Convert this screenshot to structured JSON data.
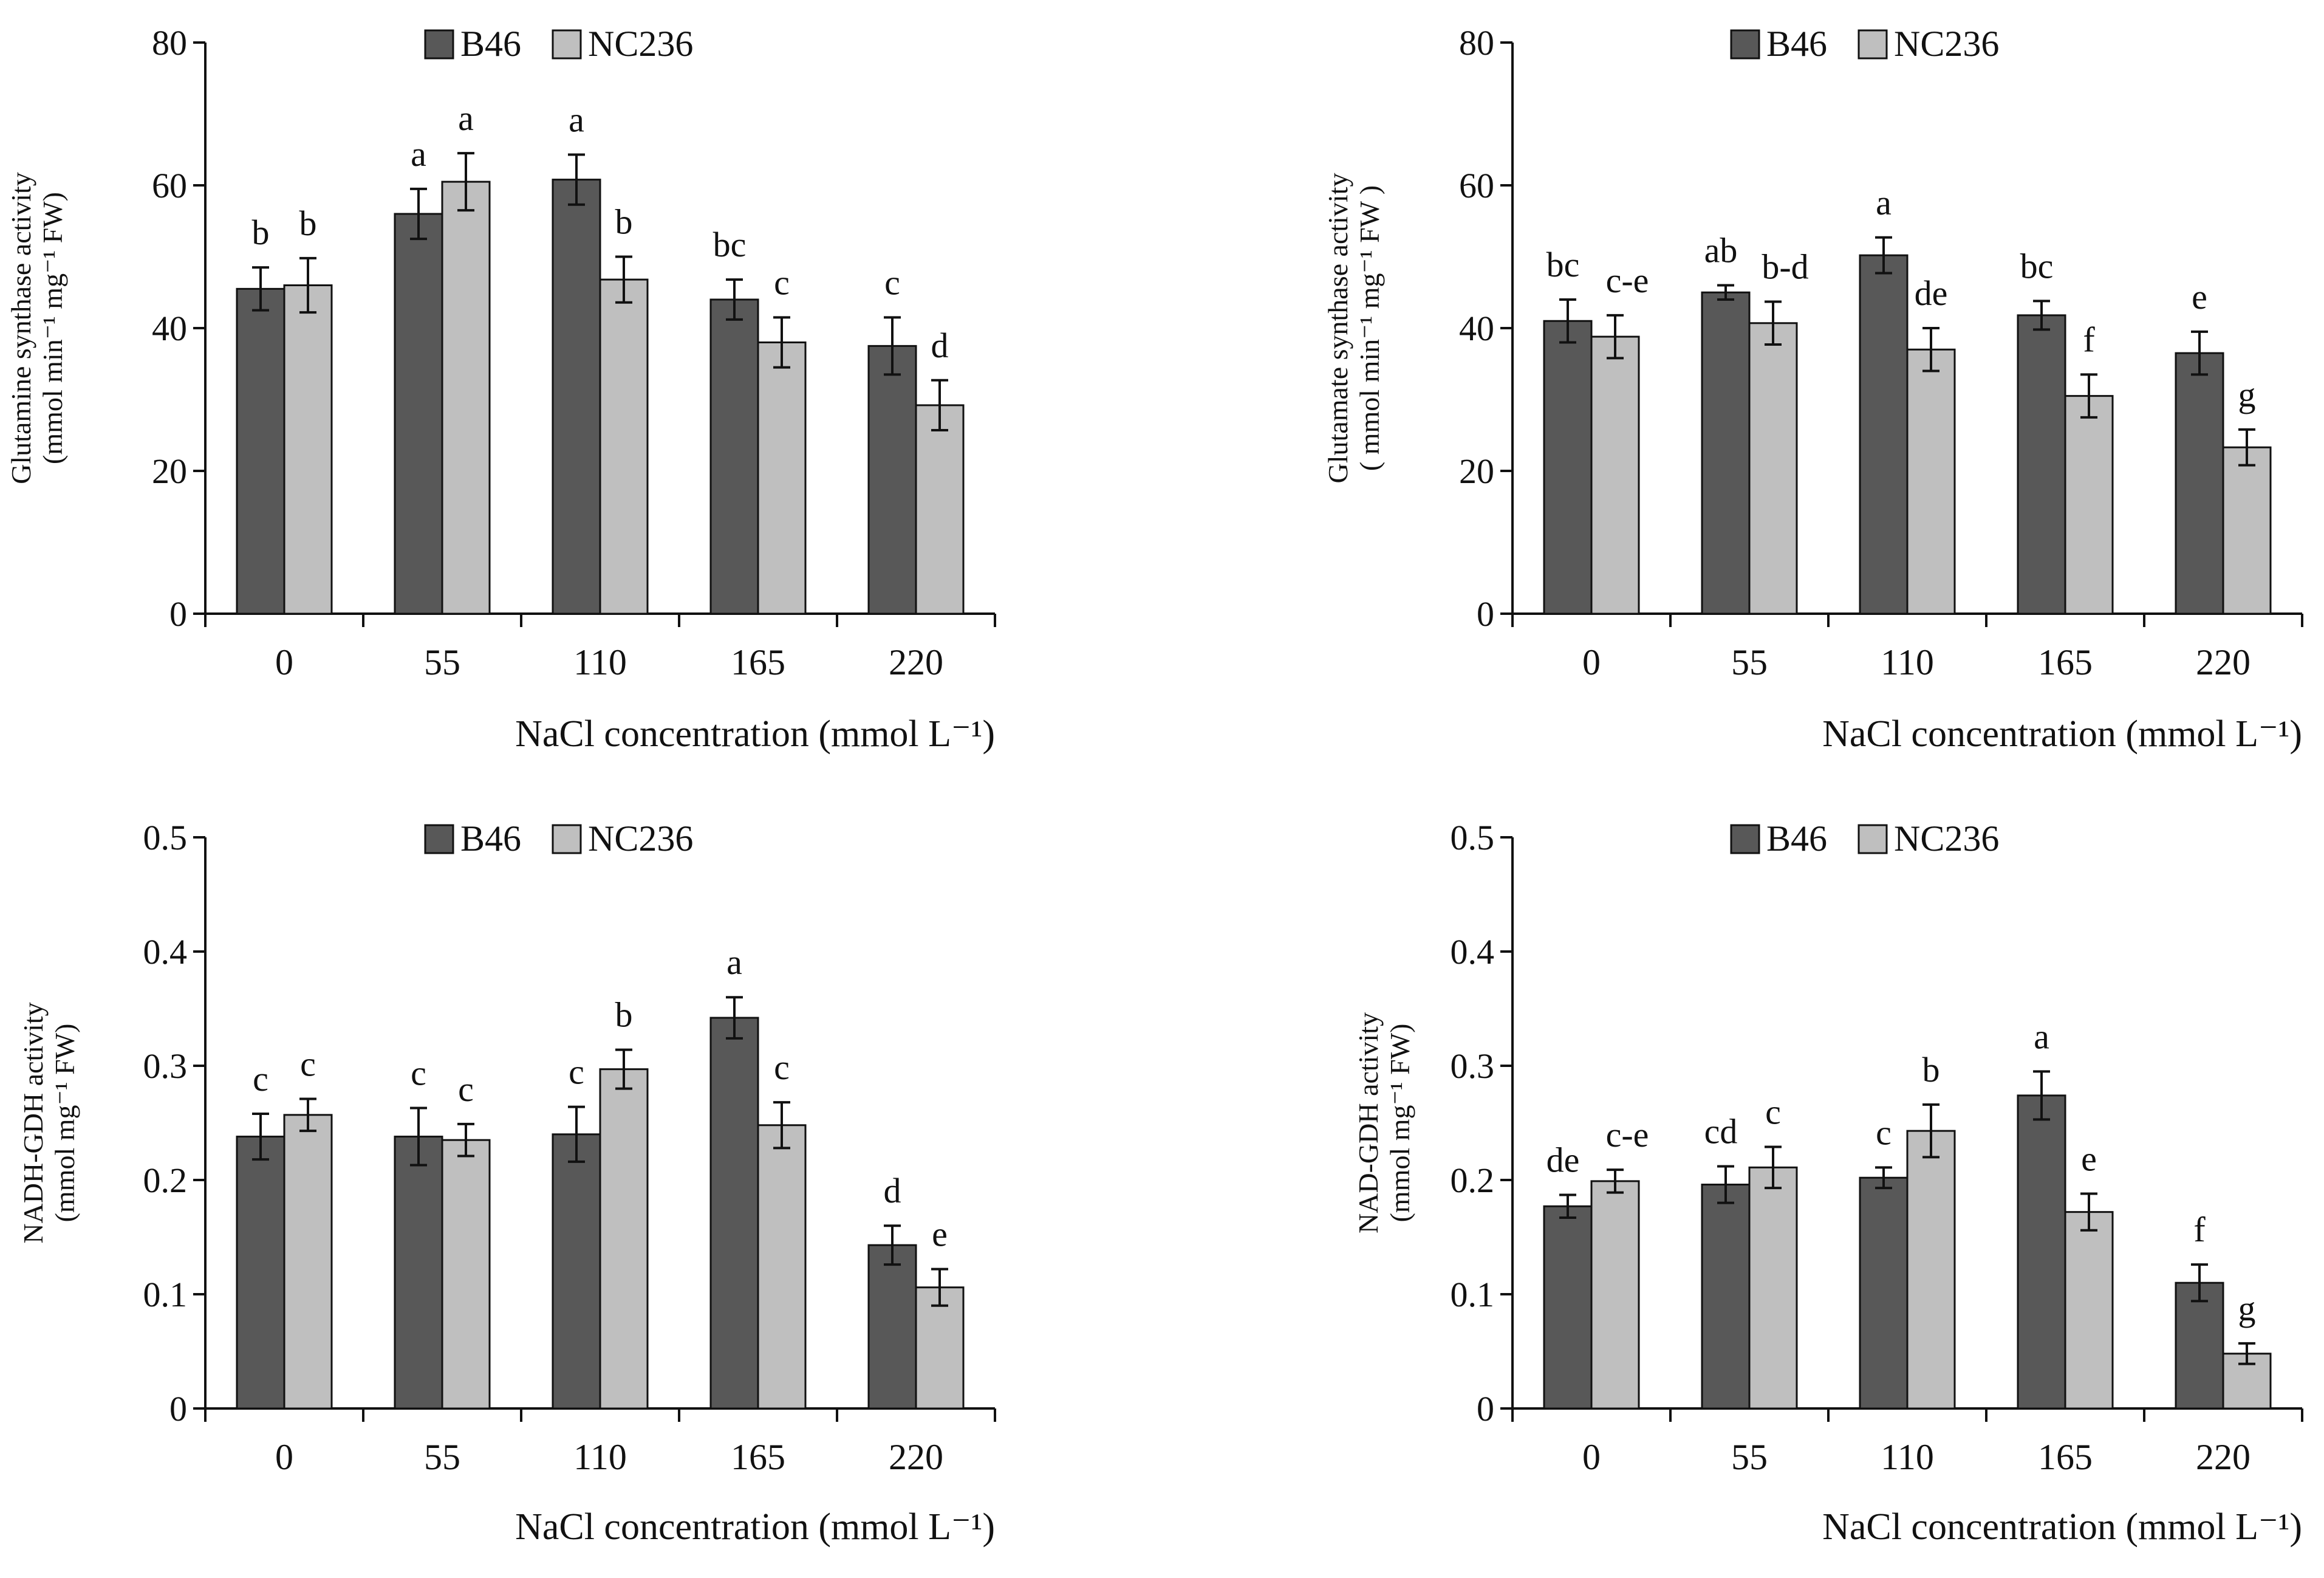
{
  "colors": {
    "b46": "#585858",
    "nc236": "#bfbfbf",
    "axis": "#111111"
  },
  "chart_data": [
    {
      "id": "gs",
      "type": "bar",
      "title": "",
      "ylabel_lines": [
        "Glutamine synthase activity",
        "(mmol min⁻¹ mg⁻¹ FW)"
      ],
      "xlabel": "NaCl concentration (mmol L⁻¹)",
      "categories": [
        "0",
        "55",
        "110",
        "165",
        "220"
      ],
      "ylim": [
        0,
        80
      ],
      "yticks": [
        0,
        20,
        40,
        60,
        80
      ],
      "ytick_labels": [
        "0",
        "20",
        "40",
        "60",
        "80"
      ],
      "legend_position": "top-center",
      "series": [
        {
          "name": "B46",
          "values": [
            45.5,
            56,
            60.8,
            44,
            37.5
          ],
          "errors": [
            3,
            3.5,
            3.5,
            2.8,
            4
          ],
          "letters": [
            "b",
            "a",
            "a",
            "bc",
            "c"
          ]
        },
        {
          "name": "NC236",
          "values": [
            46,
            60.5,
            46.8,
            38,
            29.2
          ],
          "errors": [
            3.8,
            4,
            3.2,
            3.5,
            3.5
          ],
          "letters": [
            "b",
            "a",
            "b",
            "c",
            "d"
          ]
        }
      ]
    },
    {
      "id": "gogat",
      "type": "bar",
      "title": "",
      "ylabel_lines": [
        "Glutamate synthase activity",
        "( mmol min⁻¹ mg⁻¹ FW )"
      ],
      "xlabel": "NaCl concentration (mmol L⁻¹)",
      "categories": [
        "0",
        "55",
        "110",
        "165",
        "220"
      ],
      "ylim": [
        0,
        80
      ],
      "yticks": [
        0,
        20,
        40,
        60,
        80
      ],
      "ytick_labels": [
        "0",
        "20",
        "40",
        "60",
        "80"
      ],
      "legend_position": "top-center",
      "series": [
        {
          "name": "B46",
          "values": [
            41,
            45,
            50.2,
            41.8,
            36.5
          ],
          "errors": [
            3,
            1,
            2.5,
            2,
            3
          ],
          "letters": [
            "bc",
            "ab",
            "a",
            "bc",
            "e"
          ]
        },
        {
          "name": "NC236",
          "values": [
            38.8,
            40.7,
            37,
            30.5,
            23.3
          ],
          "errors": [
            3,
            3,
            3,
            3,
            2.5
          ],
          "letters": [
            "c-e",
            "b-d",
            "de",
            "f",
            "g"
          ]
        }
      ]
    },
    {
      "id": "nadh-gdh",
      "type": "bar",
      "title": "",
      "ylabel_lines": [
        "NADH-GDH activity",
        "(mmol mg⁻¹ FW)"
      ],
      "xlabel": "NaCl concentration (mmol L⁻¹)",
      "categories": [
        "0",
        "55",
        "110",
        "165",
        "220"
      ],
      "ylim": [
        0,
        0.5
      ],
      "yticks": [
        0,
        0.1,
        0.2,
        0.3,
        0.4,
        0.5
      ],
      "ytick_labels": [
        "0",
        "0.1",
        "0.2",
        "0.3",
        "0.4",
        "0.5"
      ],
      "legend_position": "top-center",
      "series": [
        {
          "name": "B46",
          "values": [
            0.238,
            0.238,
            0.24,
            0.342,
            0.143
          ],
          "errors": [
            0.02,
            0.025,
            0.024,
            0.018,
            0.017
          ],
          "letters": [
            "c",
            "c",
            "c",
            "a",
            "d"
          ]
        },
        {
          "name": "NC236",
          "values": [
            0.257,
            0.235,
            0.297,
            0.248,
            0.106
          ],
          "errors": [
            0.014,
            0.014,
            0.017,
            0.02,
            0.016
          ],
          "letters": [
            "c",
            "c",
            "b",
            "c",
            "e"
          ]
        }
      ]
    },
    {
      "id": "nad-gdh",
      "type": "bar",
      "title": "",
      "ylabel_lines": [
        "NAD-GDH activity",
        "(mmol mg⁻¹ FW)"
      ],
      "xlabel": "NaCl concentration (mmol L⁻¹)",
      "categories": [
        "0",
        "55",
        "110",
        "165",
        "220"
      ],
      "ylim": [
        0,
        0.5
      ],
      "yticks": [
        0,
        0.1,
        0.2,
        0.3,
        0.4,
        0.5
      ],
      "ytick_labels": [
        "0",
        "0.1",
        "0.2",
        "0.3",
        "0.4",
        "0.5"
      ],
      "legend_position": "top-center",
      "series": [
        {
          "name": "B46",
          "values": [
            0.177,
            0.196,
            0.202,
            0.274,
            0.11
          ],
          "errors": [
            0.01,
            0.016,
            0.009,
            0.021,
            0.016
          ],
          "letters": [
            "de",
            "cd",
            "c",
            "a",
            "f"
          ]
        },
        {
          "name": "NC236",
          "values": [
            0.199,
            0.211,
            0.243,
            0.172,
            0.048
          ],
          "errors": [
            0.01,
            0.018,
            0.023,
            0.016,
            0.009
          ],
          "letters": [
            "c-e",
            "c",
            "b",
            "e",
            "g"
          ]
        }
      ]
    }
  ]
}
